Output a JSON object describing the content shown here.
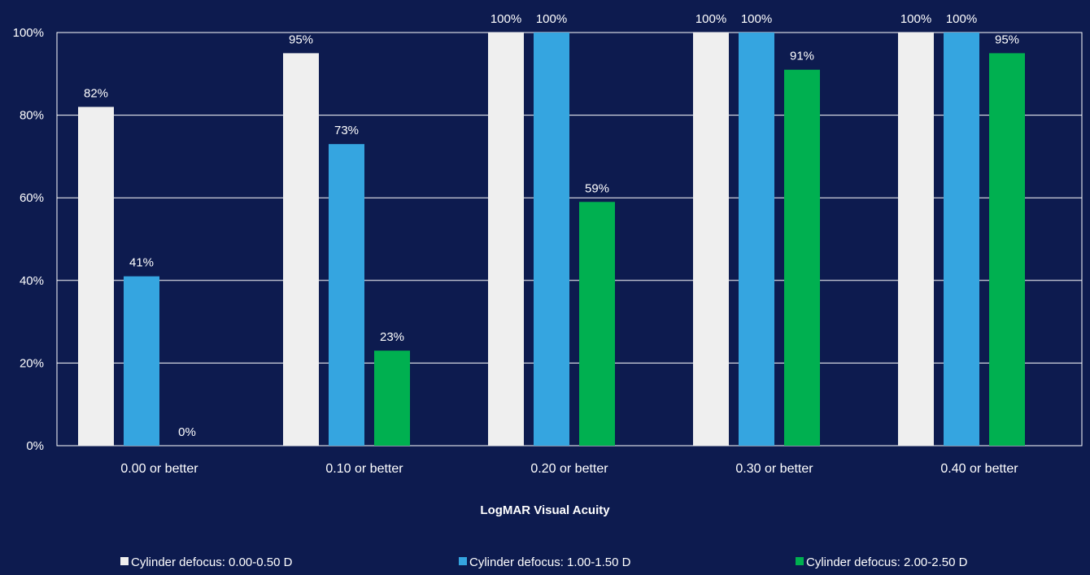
{
  "chart_data": {
    "type": "bar",
    "title": "",
    "xlabel": "LogMAR Visual Acuity",
    "ylabel": "",
    "ylim": [
      0,
      100
    ],
    "ytick_labels": [
      "0%",
      "20%",
      "40%",
      "60%",
      "80%",
      "100%"
    ],
    "ytick_values": [
      0,
      20,
      40,
      60,
      80,
      100
    ],
    "grid": true,
    "legend_position": "bottom",
    "categories": [
      "0.00 or better",
      "0.10 or better",
      "0.20 or better",
      "0.30 or better",
      "0.40 or better"
    ],
    "series": [
      {
        "name": "Cylinder defocus: 0.00-0.50 D",
        "color": "#efefef",
        "values": [
          82,
          95,
          100,
          100,
          100
        ],
        "labels": [
          "82%",
          "95%",
          "100%",
          "100%",
          "100%"
        ]
      },
      {
        "name": "Cylinder defocus: 1.00-1.50 D",
        "color": "#35a5e0",
        "values": [
          41,
          73,
          100,
          100,
          100
        ],
        "labels": [
          "41%",
          "73%",
          "100%",
          "100%",
          "100%"
        ]
      },
      {
        "name": "Cylinder defocus: 2.00-2.50 D",
        "color": "#00b050",
        "values": [
          0,
          23,
          59,
          91,
          95
        ],
        "labels": [
          "0%",
          "23%",
          "59%",
          "91%",
          "95%"
        ]
      }
    ]
  },
  "colors": {
    "background": "#0d1b4f",
    "gridline": "#ffffff",
    "text": "#ffffff"
  }
}
